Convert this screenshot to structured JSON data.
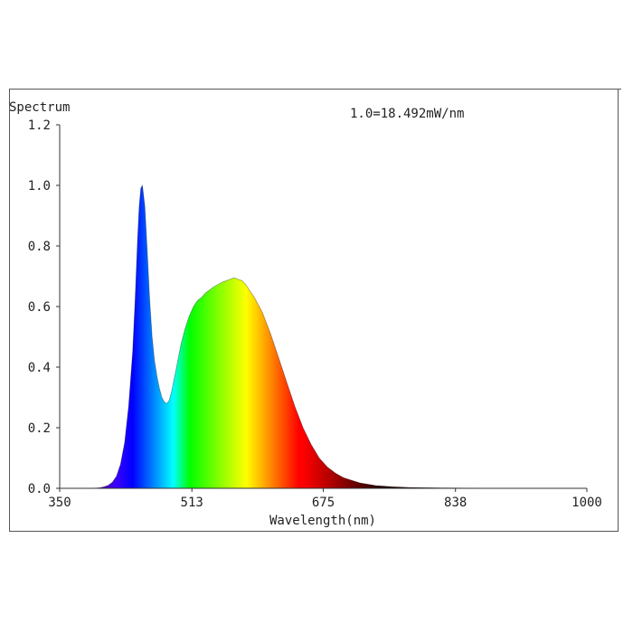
{
  "chart_data": {
    "type": "area",
    "title": "Spectrum",
    "annotation": "1.0=18.492mW/nm",
    "xlabel": "Wavelength(nm)",
    "ylabel": "",
    "xlim": [
      350,
      1000
    ],
    "ylim": [
      0,
      1.2
    ],
    "x_ticks": [
      "350",
      "513",
      "675",
      "838",
      "1000"
    ],
    "y_ticks": [
      "0.0",
      "0.2",
      "0.4",
      "0.6",
      "0.8",
      "1.0",
      "1.2"
    ],
    "grid": false,
    "fill": "wavelength-colored spectrum",
    "series": [
      {
        "x": [
          350,
          390,
          400,
          405,
          410,
          415,
          420,
          425,
          430,
          435,
          440,
          443,
          446,
          448,
          450,
          452,
          455,
          458,
          461,
          464,
          467,
          470,
          473,
          476,
          479,
          482,
          485,
          488,
          491,
          494,
          497,
          500,
          505,
          510,
          515,
          520,
          525,
          530,
          540,
          550,
          560,
          565,
          570,
          575,
          580,
          585,
          590,
          600,
          610,
          620,
          630,
          640,
          650,
          660,
          670,
          680,
          690,
          700,
          720,
          740,
          760,
          780,
          800,
          840,
          900,
          1000
        ],
        "y": [
          0.0,
          0.0,
          0.002,
          0.005,
          0.01,
          0.02,
          0.04,
          0.08,
          0.15,
          0.27,
          0.45,
          0.62,
          0.82,
          0.93,
          0.99,
          1.0,
          0.93,
          0.78,
          0.62,
          0.5,
          0.42,
          0.37,
          0.33,
          0.3,
          0.285,
          0.28,
          0.29,
          0.32,
          0.36,
          0.4,
          0.44,
          0.48,
          0.53,
          0.57,
          0.6,
          0.62,
          0.63,
          0.645,
          0.665,
          0.68,
          0.69,
          0.695,
          0.69,
          0.685,
          0.67,
          0.65,
          0.63,
          0.58,
          0.51,
          0.43,
          0.35,
          0.27,
          0.2,
          0.145,
          0.1,
          0.07,
          0.05,
          0.035,
          0.018,
          0.009,
          0.005,
          0.003,
          0.002,
          0.001,
          0.0,
          0.0
        ]
      }
    ]
  }
}
